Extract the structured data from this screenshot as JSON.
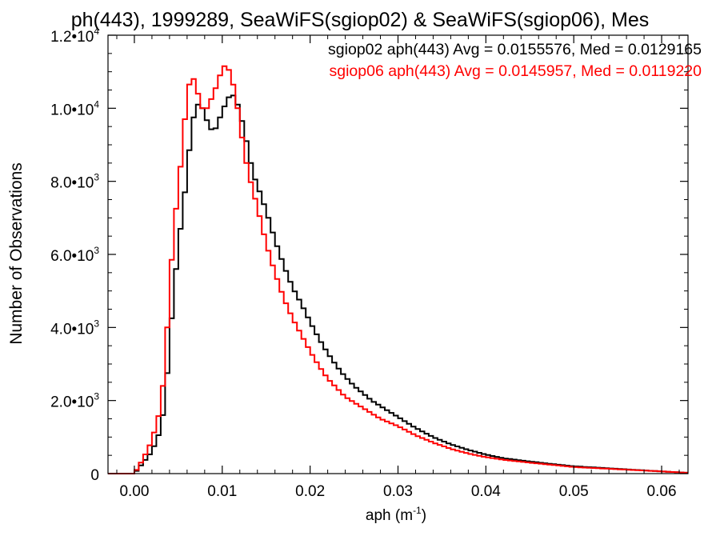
{
  "chart_data": {
    "type": "line",
    "title": "ph(443), 1999289, SeaWiFS(sgiop02) & SeaWiFS(sgiop06), Mes",
    "xlabel": "aph (m",
    "xlabel_sup": "-1",
    "xlabel_close": ")",
    "ylabel": "Number of Observations",
    "xlim": [
      -0.003,
      0.063
    ],
    "ylim": [
      0,
      12000
    ],
    "x_ticks": [
      {
        "value": 0.0,
        "label": "0.00"
      },
      {
        "value": 0.01,
        "label": "0.01"
      },
      {
        "value": 0.02,
        "label": "0.02"
      },
      {
        "value": 0.03,
        "label": "0.03"
      },
      {
        "value": 0.04,
        "label": "0.04"
      },
      {
        "value": 0.05,
        "label": "0.05"
      },
      {
        "value": 0.06,
        "label": "0.06"
      }
    ],
    "y_ticks": [
      {
        "value": 0,
        "mant": "0",
        "exp": ""
      },
      {
        "value": 2000,
        "mant": "2.0•10",
        "exp": "3"
      },
      {
        "value": 4000,
        "mant": "4.0•10",
        "exp": "3"
      },
      {
        "value": 6000,
        "mant": "6.0•10",
        "exp": "3"
      },
      {
        "value": 8000,
        "mant": "8.0•10",
        "exp": "3"
      },
      {
        "value": 10000,
        "mant": "1.0•10",
        "exp": "4"
      },
      {
        "value": 12000,
        "mant": "1.2•10",
        "exp": "4"
      }
    ],
    "series": [
      {
        "name": "sgiop02",
        "legend": "sgiop02 aph(443) Avg = 0.0155576, Med = 0.0129165",
        "color": "#000000",
        "x": [
          -0.003,
          0.0,
          0.001,
          0.002,
          0.003,
          0.0035,
          0.004,
          0.0045,
          0.005,
          0.0055,
          0.006,
          0.0065,
          0.007,
          0.0075,
          0.008,
          0.009,
          0.0095,
          0.01,
          0.0105,
          0.011,
          0.0115,
          0.012,
          0.0125,
          0.013,
          0.0135,
          0.014,
          0.015,
          0.016,
          0.017,
          0.018,
          0.019,
          0.02,
          0.021,
          0.022,
          0.023,
          0.024,
          0.025,
          0.026,
          0.027,
          0.028,
          0.029,
          0.03,
          0.032,
          0.034,
          0.036,
          0.038,
          0.04,
          0.042,
          0.045,
          0.048,
          0.05,
          0.055,
          0.06,
          0.063
        ],
        "y": [
          0,
          0,
          300,
          600,
          1200,
          2000,
          3500,
          5000,
          6200,
          7200,
          8200,
          9500,
          10000,
          10200,
          9800,
          9300,
          9600,
          9900,
          10200,
          10400,
          10300,
          9900,
          9400,
          8800,
          8200,
          7900,
          7200,
          6400,
          5700,
          5100,
          4650,
          4150,
          3700,
          3300,
          2950,
          2650,
          2400,
          2200,
          2000,
          1850,
          1700,
          1550,
          1250,
          1000,
          800,
          650,
          520,
          420,
          330,
          250,
          200,
          130,
          60,
          20
        ]
      },
      {
        "name": "sgiop06",
        "legend": "sgiop06 aph(443) Avg = 0.0145957, Med = 0.0119220",
        "color": "#ff0000",
        "x": [
          -0.003,
          0.0,
          0.001,
          0.002,
          0.003,
          0.0035,
          0.004,
          0.0045,
          0.005,
          0.0055,
          0.006,
          0.0065,
          0.007,
          0.0075,
          0.008,
          0.0085,
          0.009,
          0.0095,
          0.01,
          0.0105,
          0.011,
          0.0115,
          0.012,
          0.0125,
          0.013,
          0.014,
          0.015,
          0.016,
          0.017,
          0.018,
          0.019,
          0.02,
          0.021,
          0.022,
          0.023,
          0.024,
          0.025,
          0.026,
          0.027,
          0.028,
          0.029,
          0.03,
          0.032,
          0.034,
          0.036,
          0.038,
          0.04,
          0.042,
          0.045,
          0.048,
          0.05,
          0.055,
          0.06,
          0.063
        ],
        "y": [
          0,
          0,
          400,
          900,
          1800,
          3000,
          5000,
          6700,
          7800,
          9000,
          10400,
          10900,
          10700,
          10100,
          9900,
          10100,
          10400,
          10700,
          11100,
          11200,
          10900,
          10400,
          9600,
          8800,
          8200,
          7300,
          6300,
          5500,
          4800,
          4250,
          3800,
          3350,
          2950,
          2600,
          2350,
          2100,
          1950,
          1800,
          1650,
          1500,
          1400,
          1300,
          1050,
          850,
          680,
          550,
          450,
          380,
          300,
          230,
          180,
          120,
          60,
          20
        ]
      }
    ]
  }
}
